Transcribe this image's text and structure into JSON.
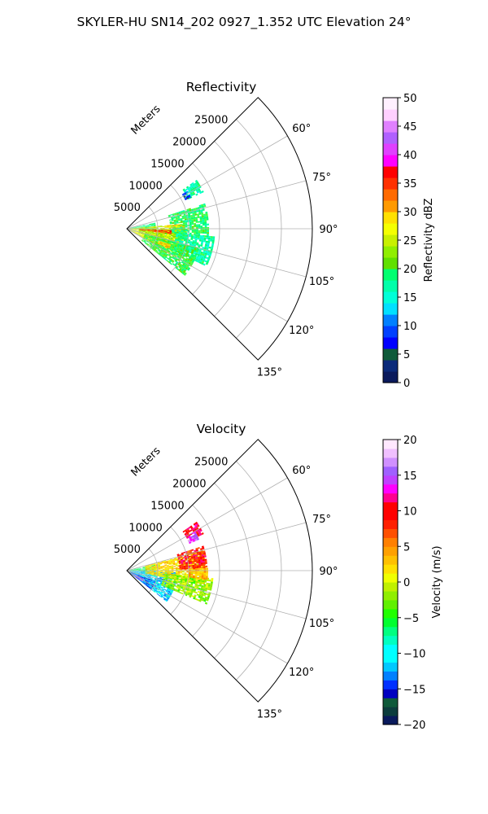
{
  "figure": {
    "suptitle": "SKYLER-HU  SN14_202  0927_1.352 UTC Elevation 24°"
  },
  "chart_data": [
    {
      "type": "heatmap",
      "subtype": "radar-ppi-sector",
      "title": "Reflectivity",
      "field": "reflectivity",
      "range_units_label": "Meters",
      "range_ticks": [
        "5000",
        "10000",
        "15000",
        "20000",
        "25000"
      ],
      "range_tick_values": [
        5000,
        10000,
        15000,
        20000,
        25000
      ],
      "range_max_m": 30000,
      "azimuth_ticks": [
        "60°",
        "75°",
        "90°",
        "105°",
        "120°",
        "135°"
      ],
      "azimuth_tick_values": [
        60,
        75,
        90,
        105,
        120,
        135
      ],
      "azimuth_range_deg": [
        45,
        135
      ],
      "grid": true,
      "colorbar": {
        "label": "Reflectivity dBZ",
        "min": 0,
        "max": 50,
        "step": 2,
        "ticks": [
          "0",
          "5",
          "10",
          "15",
          "20",
          "25",
          "30",
          "35",
          "40",
          "45",
          "50"
        ],
        "palette": [
          "#0a1a5c",
          "#0a2a7a",
          "#0c3d3d",
          "#0f5a3a",
          "#0000ff",
          "#0040ff",
          "#0080ff",
          "#00b4ff",
          "#00e0ff",
          "#00ffd8",
          "#00ffaa",
          "#00ff70",
          "#40ff40",
          "#60e000",
          "#90ee00",
          "#c8f000",
          "#f5ff00",
          "#ffe000",
          "#ffc000",
          "#ff9a00",
          "#ff6a00",
          "#ff3000",
          "#ff0000",
          "#ff0090",
          "#ff00ff",
          "#e040ff",
          "#b060ff",
          "#e080ff",
          "#f0a0ff",
          "#ffd0ff",
          "#fff0ff"
        ]
      },
      "echo_regions": [
        {
          "az_from": 55,
          "az_to": 64,
          "r_from": 11000,
          "r_to": 13500,
          "value": 17
        },
        {
          "az_from": 58,
          "az_to": 63,
          "r_from": 10500,
          "r_to": 11500,
          "value": 8
        },
        {
          "az_from": 78,
          "az_to": 92,
          "r_from": 500,
          "r_to": 4500,
          "value": 18
        },
        {
          "az_from": 85,
          "az_to": 120,
          "r_from": 500,
          "r_to": 9000,
          "value": 26
        },
        {
          "az_from": 90,
          "az_to": 108,
          "r_from": 2000,
          "r_to": 10000,
          "value": 24
        },
        {
          "az_from": 72,
          "az_to": 95,
          "r_from": 7000,
          "r_to": 13000,
          "value": 19
        },
        {
          "az_from": 95,
          "az_to": 115,
          "r_from": 8000,
          "r_to": 14000,
          "value": 17
        },
        {
          "az_from": 105,
          "az_to": 128,
          "r_from": 3000,
          "r_to": 12000,
          "value": 20
        },
        {
          "az_from": 92,
          "az_to": 96,
          "r_from": 2000,
          "r_to": 7000,
          "value": 34
        },
        {
          "az_from": 110,
          "az_to": 116,
          "r_from": 5500,
          "r_to": 7500,
          "value": 30
        },
        {
          "az_from": 85,
          "az_to": 88,
          "r_from": 6500,
          "r_to": 9000,
          "value": 28
        }
      ]
    },
    {
      "type": "heatmap",
      "subtype": "radar-ppi-sector",
      "title": "Velocity",
      "field": "velocity",
      "range_units_label": "Meters",
      "range_ticks": [
        "5000",
        "10000",
        "15000",
        "20000",
        "25000"
      ],
      "range_tick_values": [
        5000,
        10000,
        15000,
        20000,
        25000
      ],
      "range_max_m": 30000,
      "azimuth_ticks": [
        "60°",
        "75°",
        "90°",
        "105°",
        "120°",
        "135°"
      ],
      "azimuth_tick_values": [
        60,
        75,
        90,
        105,
        120,
        135
      ],
      "azimuth_range_deg": [
        45,
        135
      ],
      "grid": true,
      "colorbar": {
        "label": "Velocity (m/s)",
        "min": -20,
        "max": 20,
        "step": 1.25,
        "ticks": [
          "−20",
          "−15",
          "−10",
          "−5",
          "0",
          "5",
          "10",
          "15",
          "20"
        ],
        "palette": [
          "#0a1a5c",
          "#0c3d3d",
          "#0f5a3a",
          "#0000c0",
          "#0030ff",
          "#0080ff",
          "#00c8ff",
          "#00ffff",
          "#00ffc0",
          "#00ff80",
          "#00ff30",
          "#20ff00",
          "#60f000",
          "#90ee00",
          "#c0f000",
          "#f0ff00",
          "#ffe000",
          "#ffc000",
          "#ffa000",
          "#ff8000",
          "#ff5000",
          "#ff2000",
          "#ff0000",
          "#ff0090",
          "#ff00ff",
          "#c040ff",
          "#a060ff",
          "#d090ff",
          "#f0c0ff",
          "#ffe8ff"
        ]
      },
      "echo_regions": [
        {
          "az_from": 55,
          "az_to": 64,
          "r_from": 11000,
          "r_to": 13500,
          "value": 11
        },
        {
          "az_from": 62,
          "az_to": 66,
          "r_from": 11000,
          "r_to": 12500,
          "value": 15
        },
        {
          "az_from": 78,
          "az_to": 92,
          "r_from": 500,
          "r_to": 4500,
          "value": -7
        },
        {
          "az_from": 92,
          "az_to": 128,
          "r_from": 500,
          "r_to": 8000,
          "value": -11
        },
        {
          "az_from": 110,
          "az_to": 128,
          "r_from": 500,
          "r_to": 5000,
          "value": -13
        },
        {
          "az_from": 75,
          "az_to": 100,
          "r_from": 3000,
          "r_to": 12500,
          "value": 2
        },
        {
          "az_from": 95,
          "az_to": 113,
          "r_from": 6000,
          "r_to": 14000,
          "value": -2
        },
        {
          "az_from": 72,
          "az_to": 88,
          "r_from": 8500,
          "r_to": 13000,
          "value": 9
        },
        {
          "az_from": 88,
          "az_to": 96,
          "r_from": 10000,
          "r_to": 13000,
          "value": 4
        },
        {
          "az_from": 115,
          "az_to": 125,
          "r_from": 1000,
          "r_to": 3000,
          "value": 16
        }
      ]
    }
  ]
}
